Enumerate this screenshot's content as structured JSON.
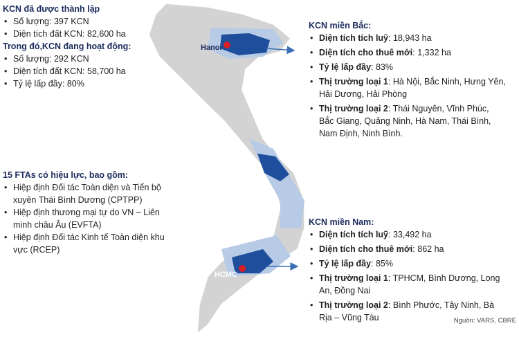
{
  "map_labels": {
    "north_city": "Hanoi",
    "south_city": "HCMC"
  },
  "established": {
    "title": "KCN đã được thành lập",
    "items": [
      "Số lượng: 397 KCN",
      "Diện tích đất KCN: 82,600 ha"
    ]
  },
  "operating": {
    "title": "Trong đó,KCN đang hoạt động:",
    "items": [
      "Số lượng: 292 KCN",
      "Diện tích đất KCN: 58,700 ha",
      "Tỷ lệ lấp đầy: 80%"
    ]
  },
  "ftas": {
    "title": "15 FTAs có hiệu lực, bao gồm:",
    "items": [
      "Hiệp định Đối tác Toàn diện và Tiến bộ xuyên Thái Bình Dương (CPTPP)",
      "Hiệp định thương mại tự do VN – Liên minh châu Âu (EVFTA)",
      "Hiệp định Đối tác Kinh tế Toàn diện khu vực (RCEP)"
    ]
  },
  "north": {
    "title": "KCN miền Bắc:",
    "items": [
      {
        "label": "Diện tích tích luỹ",
        "value": ": 18,943 ha"
      },
      {
        "label": "Diện tích cho thuê mới",
        "value": ": 1,332 ha"
      },
      {
        "label": "Tỷ lệ lấp đầy",
        "value": ": 83%"
      },
      {
        "label": "Thị trường loại 1",
        "value": ": Hà Nội, Bắc Ninh, Hưng Yên, Hải Dương, Hải Phòng"
      },
      {
        "label": "Thị trường loại 2",
        "value": ": Thái Nguyên, Vĩnh Phúc, Bắc Giang, Quảng Ninh, Hà Nam, Thái Bình, Nam Định, Ninh Bình."
      }
    ]
  },
  "south": {
    "title": "KCN miền Nam:",
    "items": [
      {
        "label": "Diện tích tích luỹ",
        "value": ": 33,492 ha"
      },
      {
        "label": "Diện tích cho thuê mới",
        "value": ": 862 ha"
      },
      {
        "label": "Tỷ lệ lấp đầy",
        "value": ": 85%"
      },
      {
        "label": "Thị trường loại 1",
        "value": ": TPHCM, Bình Dương, Long An, Đồng Nai"
      },
      {
        "label": "Thị trường loại 2",
        "value": ": Bình Phước, Tây Ninh, Bà Rịa – Vũng Tàu"
      }
    ]
  },
  "source": "Nguồn: VARS, CBRE"
}
